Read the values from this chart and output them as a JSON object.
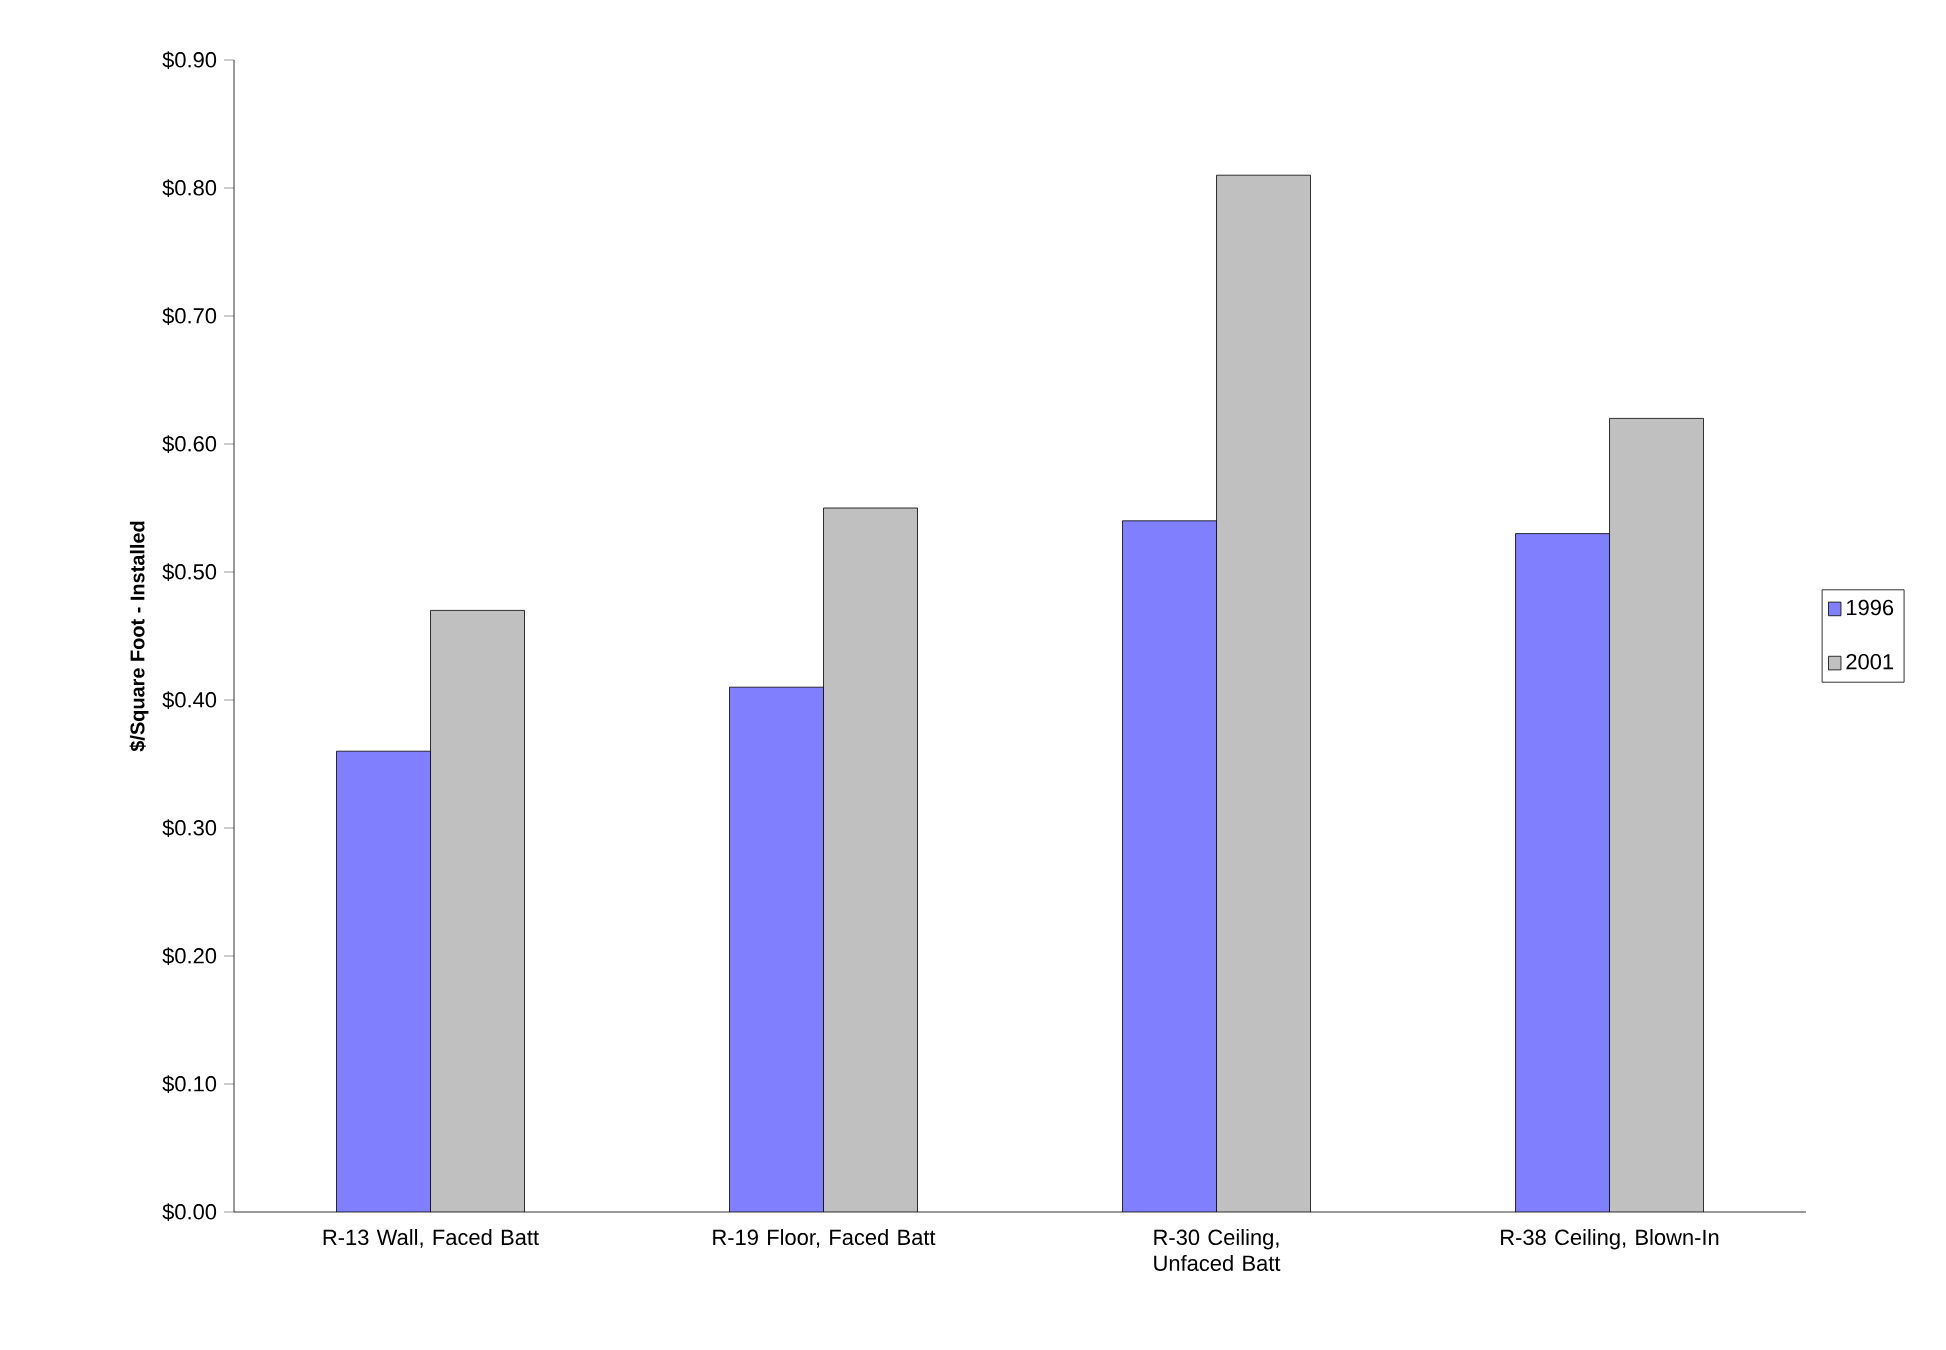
{
  "chart_data": {
    "type": "bar",
    "ylabel": "$/Square Foot - Installed",
    "categories": [
      "R-13 Wall, Faced Batt",
      "R-19 Floor, Faced Batt",
      "R-30 Ceiling, Unfaced Batt",
      "R-38 Ceiling, Blown-In"
    ],
    "series": [
      {
        "name": "1996",
        "color": "#8080ff",
        "values": [
          0.36,
          0.41,
          0.54,
          0.53
        ]
      },
      {
        "name": "2001",
        "color": "#c0c0c0",
        "values": [
          0.47,
          0.55,
          0.81,
          0.62
        ]
      }
    ],
    "ylim": [
      0,
      0.9
    ],
    "yticks": [
      {
        "value": 0,
        "label": "$0.00"
      },
      {
        "value": 0.1,
        "label": "$0.10"
      },
      {
        "value": 0.2,
        "label": "$0.20"
      },
      {
        "value": 0.3,
        "label": "$0.30"
      },
      {
        "value": 0.4,
        "label": "$0.40"
      },
      {
        "value": 0.5,
        "label": "$0.50"
      },
      {
        "value": 0.6,
        "label": "$0.60"
      },
      {
        "value": 0.7,
        "label": "$0.70"
      },
      {
        "value": 0.8,
        "label": "$0.80"
      },
      {
        "value": 0.9,
        "label": "$0.90"
      }
    ],
    "grid": false,
    "legend": "right"
  }
}
